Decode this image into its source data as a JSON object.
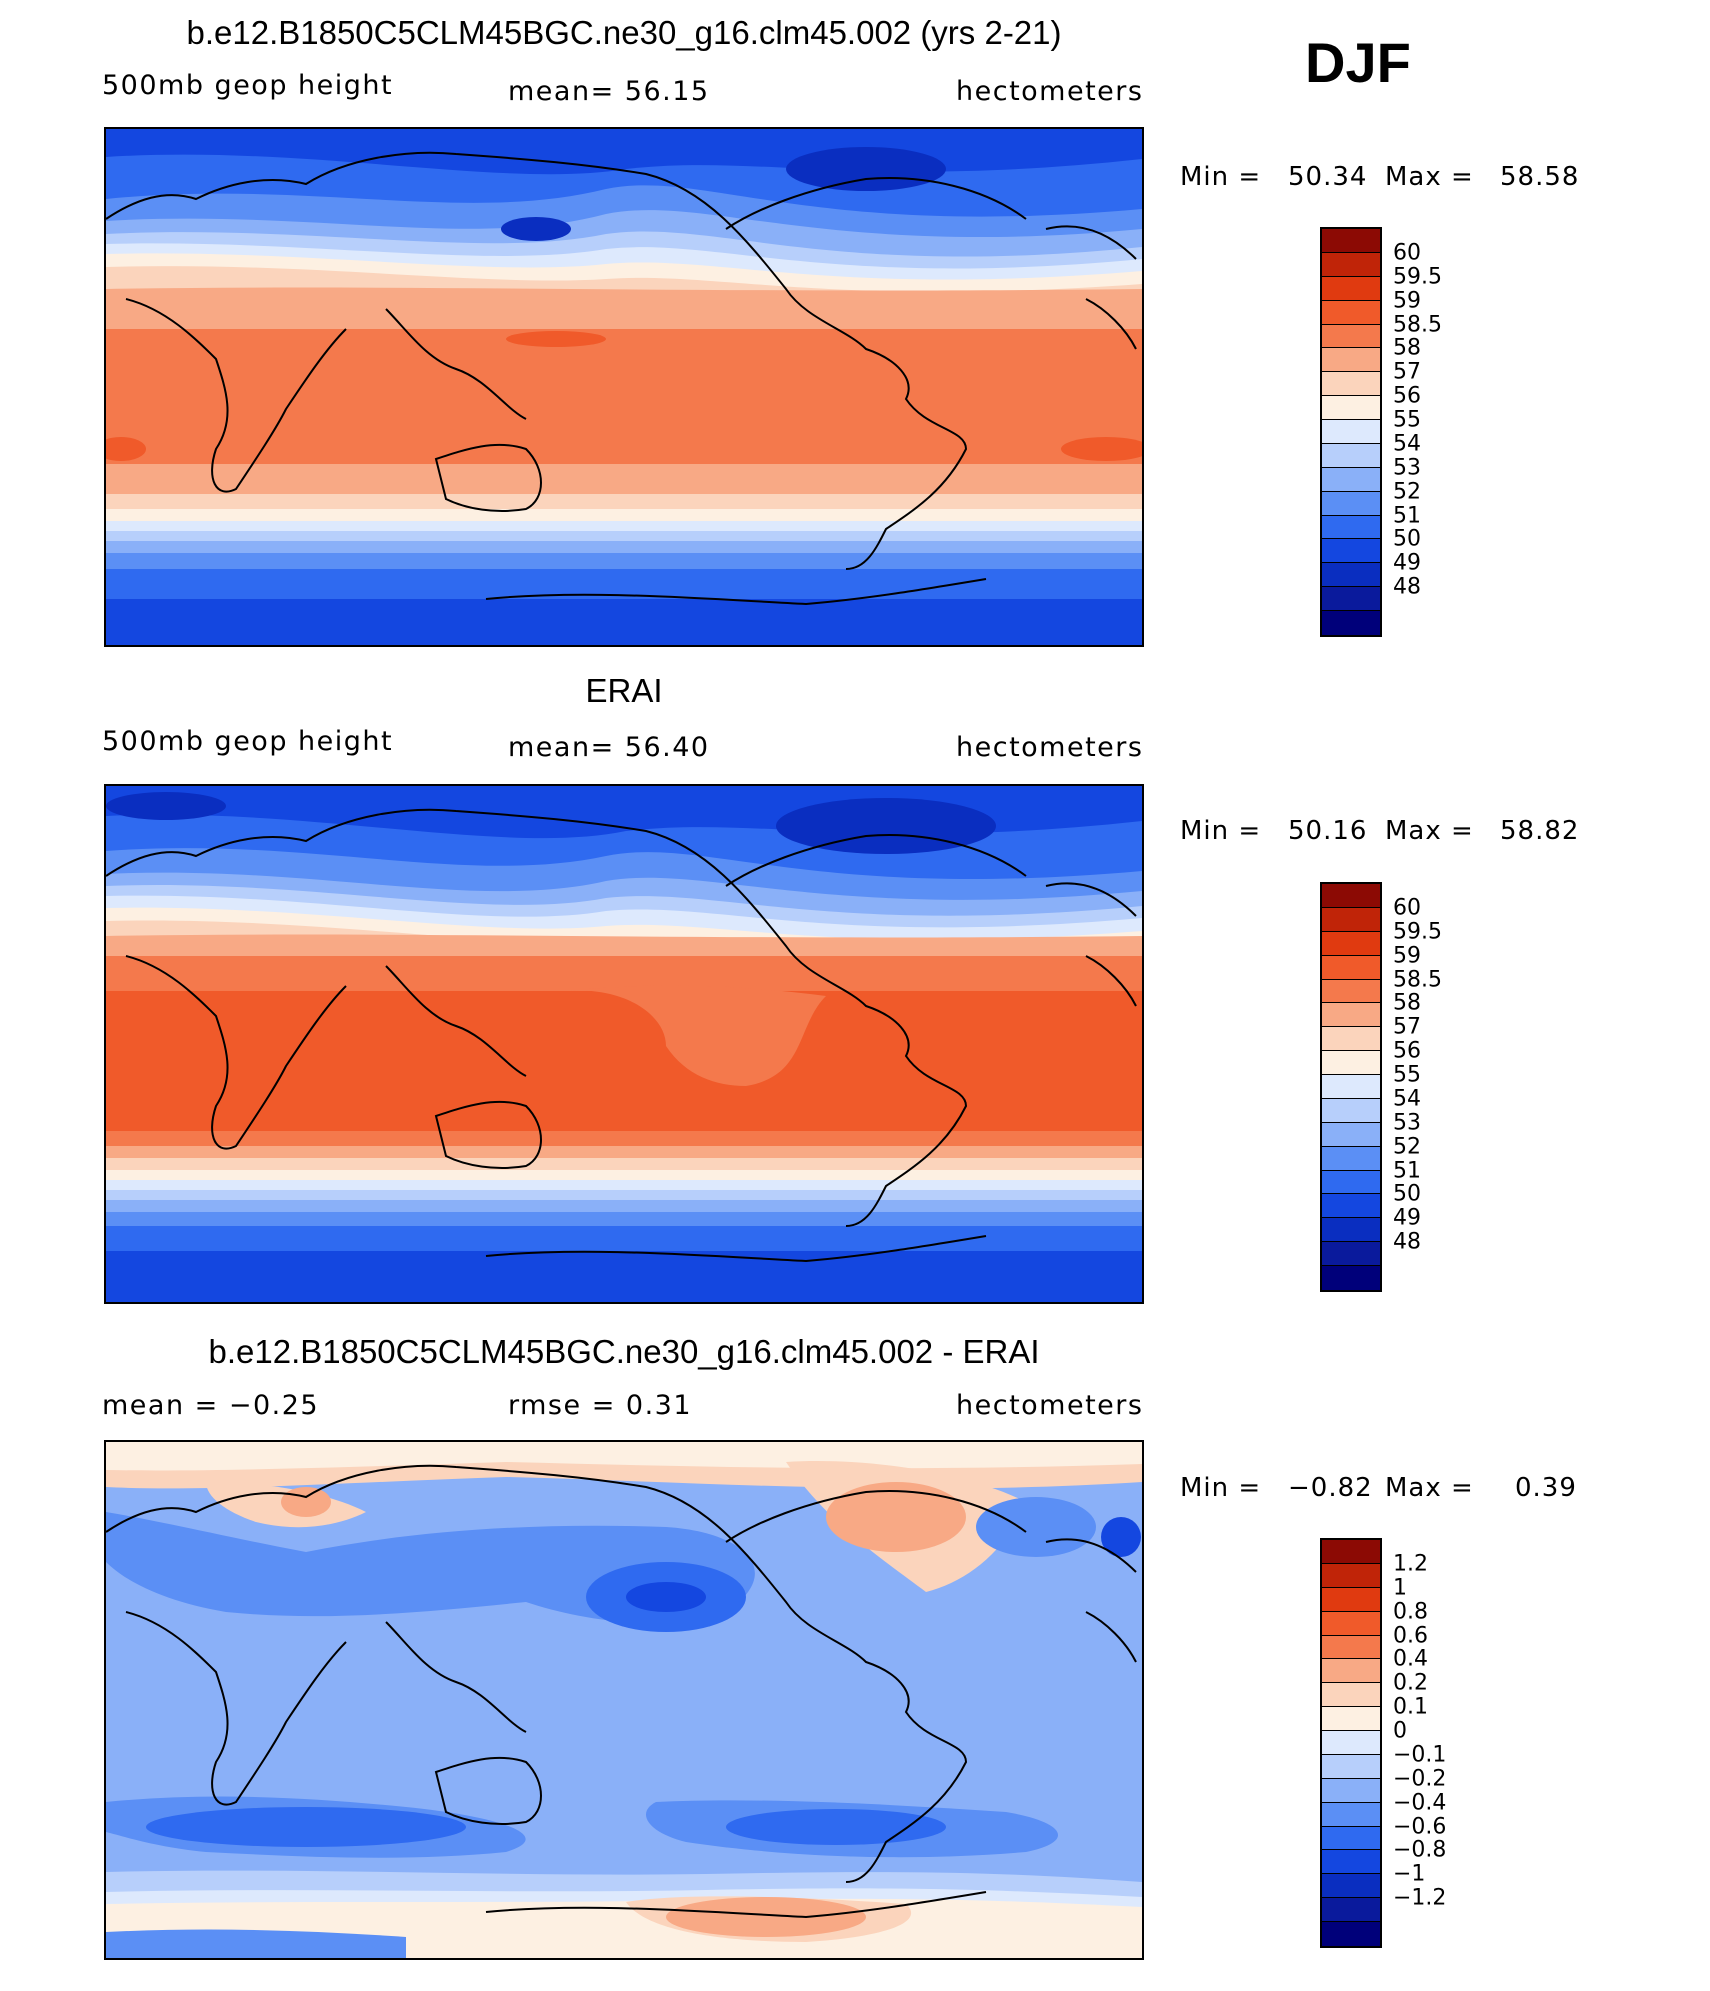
{
  "season": "DJF",
  "palette_abs": [
    "#00007a",
    "#0a1a9c",
    "#0a2ec0",
    "#1447e0",
    "#2f6af0",
    "#5b8ff5",
    "#8ab0f8",
    "#b7cffb",
    "#dde9fd",
    "#fdf0e2",
    "#fbd4bc",
    "#f8a985",
    "#f4794c",
    "#f05a2a",
    "#e03a10",
    "#c02408",
    "#8c0a04"
  ],
  "palette_diff": [
    "#00007a",
    "#0a1a9c",
    "#0a2ec0",
    "#1447e0",
    "#2f6af0",
    "#5b8ff5",
    "#8ab0f8",
    "#b7cffb",
    "#dde9fd",
    "#fdf0e2",
    "#fbd4bc",
    "#f8a985",
    "#f4794c",
    "#f05a2a",
    "#e03a10",
    "#c02408",
    "#8c0a04"
  ],
  "panels": [
    {
      "title": "b.e12.B1850C5CLM45BGC.ne30_g16.clm45.002 (yrs 2-21)",
      "left_label": "500mb  geop  height",
      "mid_label": "mean=   56.15",
      "units": "hectometers",
      "min_label": "Min  =",
      "min_value": "50.34",
      "max_label": "Max  =",
      "max_value": "58.58",
      "colorbar_labels": [
        "60",
        "59.5",
        "59",
        "58.5",
        "58",
        "57",
        "56",
        "55",
        "54",
        "53",
        "52",
        "51",
        "50",
        "49",
        "48"
      ]
    },
    {
      "title": "ERAI",
      "left_label": "500mb  geop  height",
      "mid_label": "mean=   56.40",
      "units": "hectometers",
      "min_label": "Min  =",
      "min_value": "50.16",
      "max_label": "Max  =",
      "max_value": "58.82",
      "colorbar_labels": [
        "60",
        "59.5",
        "59",
        "58.5",
        "58",
        "57",
        "56",
        "55",
        "54",
        "53",
        "52",
        "51",
        "50",
        "49",
        "48"
      ]
    },
    {
      "title": "b.e12.B1850C5CLM45BGC.ne30_g16.clm45.002 - ERAI",
      "left_label": "mean  =    −0.25",
      "mid_label": "rmse  =     0.31",
      "units": "hectometers",
      "min_label": "Min  =",
      "min_value": "−0.82",
      "max_label": "Max  =",
      "max_value": "0.39",
      "colorbar_labels": [
        "1.2",
        "1",
        "0.8",
        "0.6",
        "0.4",
        "0.2",
        "0.1",
        "0",
        "−0.1",
        "−0.2",
        "−0.4",
        "−0.6",
        "−0.8",
        "−1",
        "−1.2"
      ]
    }
  ]
}
